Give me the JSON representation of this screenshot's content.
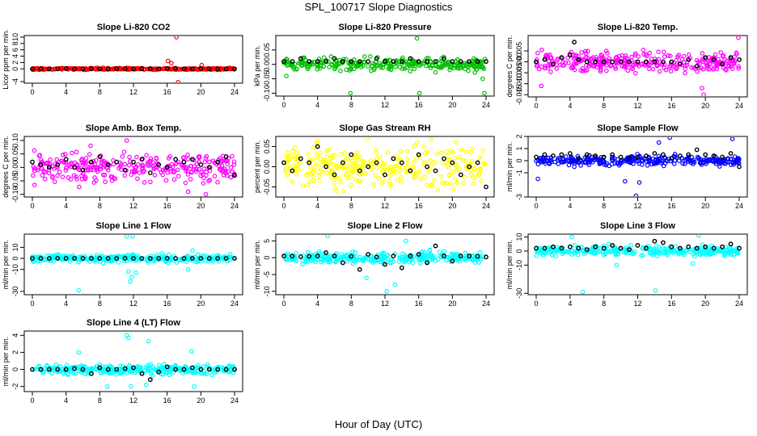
{
  "figure": {
    "title": "SPL_100717  Slope Diagnostics",
    "xlabel": "Hour of Day (UTC)"
  },
  "chart_data": [
    {
      "type": "scatter",
      "title": "Slope Li-820 CO2",
      "ylabel": "Licor ppm per min.",
      "xlim": [
        0,
        24
      ],
      "ylim": [
        -4.5,
        10.5
      ],
      "xticks": [
        0,
        4,
        8,
        12,
        16,
        20,
        24
      ],
      "yticks": [
        -4,
        0,
        2,
        4,
        6,
        8,
        10
      ],
      "ytick_labels": [
        "-4",
        "0",
        "2",
        "4",
        "6",
        "8",
        "10"
      ],
      "color": "#ff0000",
      "spread": 0.25,
      "outliers": [
        {
          "x": 17.1,
          "y": 10
        },
        {
          "x": 17.3,
          "y": -4.2
        },
        {
          "x": 16.1,
          "y": 2.5
        },
        {
          "x": 16.5,
          "y": 1.8
        },
        {
          "x": 20.1,
          "y": 1.2
        }
      ],
      "black_points": {
        "x": [
          0,
          1,
          2,
          3,
          4,
          5,
          6,
          7,
          8,
          9,
          10,
          11,
          12,
          13,
          14,
          15,
          16,
          17,
          18,
          19,
          20,
          21,
          22,
          23,
          24
        ],
        "y": [
          0,
          0,
          0,
          0,
          0.1,
          0,
          0,
          0,
          0,
          0,
          0.1,
          0,
          0,
          0,
          0,
          0,
          0.1,
          0.2,
          0,
          0,
          0.1,
          0,
          0,
          0,
          0
        ]
      }
    },
    {
      "type": "scatter",
      "title": "Slope Li-820 Pressure",
      "ylabel": "kPa per min.",
      "xlim": [
        0,
        24
      ],
      "ylim": [
        -0.11,
        0.1
      ],
      "xticks": [
        0,
        4,
        8,
        12,
        16,
        20,
        24
      ],
      "yticks": [
        -0.1,
        -0.05,
        0,
        0.05
      ],
      "ytick_labels": [
        "-0.10",
        "-0.05",
        "0.00",
        "0.05"
      ],
      "color": "#00c000",
      "spread": 0.02,
      "outliers": [
        {
          "x": 7.9,
          "y": -0.1
        },
        {
          "x": 15.8,
          "y": 0.09
        },
        {
          "x": 16.1,
          "y": -0.1
        },
        {
          "x": 23.8,
          "y": -0.1
        },
        {
          "x": 0.3,
          "y": -0.04
        },
        {
          "x": 23.6,
          "y": -0.05
        }
      ],
      "black_points": {
        "x": [
          0,
          1,
          2,
          3,
          4,
          5,
          6,
          7,
          8,
          9,
          10,
          11,
          12,
          13,
          14,
          15,
          16,
          17,
          18,
          19,
          20,
          21,
          22,
          23,
          24
        ],
        "y": [
          0.01,
          0.01,
          0.02,
          0.01,
          0.01,
          0.01,
          0.02,
          0.01,
          0.01,
          0.01,
          0.01,
          0.02,
          0.01,
          0.01,
          0.01,
          0.02,
          0.01,
          0.01,
          0.01,
          0.02,
          0.01,
          0.01,
          0.01,
          0.01,
          0.01
        ]
      }
    },
    {
      "type": "scatter",
      "title": "Slope Li-820 Temp.",
      "ylabel": "degrees C per min.",
      "xlim": [
        0,
        24
      ],
      "ylim": [
        -0.016,
        0.012
      ],
      "xticks": [
        0,
        4,
        8,
        12,
        16,
        20,
        24
      ],
      "yticks": [
        -0.015,
        -0.01,
        -0.005,
        0,
        0.005
      ],
      "ytick_labels": [
        "-0.015",
        "-0.010",
        "-0.005",
        "0.000",
        "0.005"
      ],
      "color": "#ff00ff",
      "spread": 0.004,
      "outliers": [
        {
          "x": 23.9,
          "y": 0.011
        },
        {
          "x": 19.8,
          "y": -0.015
        },
        {
          "x": 19.6,
          "y": -0.012
        },
        {
          "x": 0.6,
          "y": -0.011
        }
      ],
      "black_points": {
        "x": [
          0,
          1,
          2,
          3,
          4,
          4.5,
          5,
          6,
          7,
          8,
          9,
          10,
          11,
          12,
          13,
          14,
          15,
          16,
          17,
          18,
          19,
          20,
          21,
          22,
          23,
          24
        ],
        "y": [
          0,
          0.001,
          -0.001,
          0.002,
          0.003,
          0.009,
          0.001,
          0,
          0,
          0,
          0,
          0,
          0,
          0,
          0,
          0,
          0,
          0,
          -0.001,
          0.001,
          -0.002,
          0.002,
          0.001,
          -0.001,
          0.002,
          0.001
        ]
      }
    },
    {
      "type": "scatter",
      "title": "Slope Amb. Box Temp.",
      "ylabel": "degrees C per min.",
      "xlim": [
        0,
        24
      ],
      "ylim": [
        -0.11,
        0.115
      ],
      "xticks": [
        0,
        4,
        8,
        12,
        16,
        20,
        24
      ],
      "yticks": [
        -0.1,
        -0.05,
        0,
        0.05,
        0.1
      ],
      "ytick_labels": [
        "-0.10",
        "-0.05",
        "0.00",
        "0.05",
        "0.10"
      ],
      "color": "#ff00ff",
      "spread": 0.05,
      "outliers": [
        {
          "x": 11.2,
          "y": 0.1
        },
        {
          "x": 20.6,
          "y": -0.1
        },
        {
          "x": 18.5,
          "y": -0.09
        }
      ],
      "black_points": {
        "x": [
          0,
          1,
          2,
          3,
          4,
          5,
          6,
          7,
          8,
          9,
          10,
          11,
          12,
          13,
          14,
          15,
          16,
          17,
          18,
          19,
          20,
          21,
          22,
          23,
          24
        ],
        "y": [
          0.02,
          0.01,
          0,
          0.01,
          0.03,
          0,
          -0.01,
          0.02,
          0.04,
          0.01,
          0.02,
          -0.01,
          0.02,
          0.03,
          -0.02,
          0.01,
          0,
          0.03,
          0.02,
          0.03,
          0.01,
          0,
          0.02,
          0.04,
          -0.03
        ]
      }
    },
    {
      "type": "scatter",
      "title": "Slope Gas Stream RH",
      "ylabel": "percent per min.",
      "xlim": [
        0,
        24
      ],
      "ylim": [
        -0.075,
        0.075
      ],
      "xticks": [
        0,
        4,
        8,
        12,
        16,
        20,
        24
      ],
      "yticks": [
        -0.05,
        0,
        0.05
      ],
      "ytick_labels": [
        "-0.05",
        "0.00",
        "0.05"
      ],
      "color": "#ffff00",
      "spread": 0.045,
      "outliers": [
        {
          "x": 9.9,
          "y": 0.07
        },
        {
          "x": 3.9,
          "y": 0.06
        }
      ],
      "black_points": {
        "x": [
          0,
          1,
          2,
          3,
          4,
          5,
          6,
          7,
          8,
          9,
          10,
          11,
          12,
          13,
          14,
          15,
          16,
          17,
          18,
          19,
          20,
          21,
          22,
          23,
          24
        ],
        "y": [
          0.01,
          -0.01,
          0.02,
          0.01,
          0.05,
          0,
          -0.02,
          0.01,
          0.03,
          -0.01,
          0,
          0.01,
          -0.02,
          0.02,
          0.01,
          -0.01,
          0.03,
          0,
          -0.01,
          0.02,
          0.01,
          -0.02,
          0,
          0.01,
          -0.05
        ]
      }
    },
    {
      "type": "scatter",
      "title": "Slope Sample Flow",
      "ylabel": "ml/min per min.",
      "xlim": [
        0,
        24
      ],
      "ylim": [
        -3,
        2
      ],
      "xticks": [
        0,
        4,
        8,
        12,
        16,
        20,
        24
      ],
      "yticks": [
        -3,
        -1,
        0,
        1,
        2
      ],
      "ytick_labels": [
        "-3",
        "-1",
        "0",
        "1",
        "2"
      ],
      "color": "#0000ff",
      "spread": 0.35,
      "outliers": [
        {
          "x": 11.8,
          "y": -2.9
        },
        {
          "x": 14.5,
          "y": 1.5
        },
        {
          "x": 15.8,
          "y": 1.9
        },
        {
          "x": 23.2,
          "y": 1.8
        },
        {
          "x": 0.2,
          "y": -1.5
        },
        {
          "x": 12.2,
          "y": -1.8
        },
        {
          "x": 10.5,
          "y": -1.7
        }
      ],
      "black_points": {
        "x": [
          0,
          1,
          2,
          3,
          4,
          5,
          6,
          7,
          8,
          9,
          10,
          11,
          12,
          13,
          14,
          15,
          16,
          17,
          18,
          19,
          20,
          21,
          22,
          23,
          24
        ],
        "y": [
          0.3,
          0.5,
          0.4,
          0.5,
          0.6,
          0.2,
          0.5,
          0.4,
          0.3,
          0.5,
          0.3,
          0.2,
          0.3,
          0.4,
          0.6,
          0.5,
          0.2,
          0.4,
          0.5,
          0.9,
          0.5,
          0.4,
          0.3,
          0.6,
          -0.5
        ]
      }
    },
    {
      "type": "scatter",
      "title": "Slope Line 1 Flow",
      "ylabel": "ml/min per min.",
      "xlim": [
        0,
        24
      ],
      "ylim": [
        -33,
        22
      ],
      "xticks": [
        0,
        4,
        8,
        12,
        16,
        20,
        24
      ],
      "yticks": [
        -30,
        -10,
        0,
        10
      ],
      "ytick_labels": [
        "-30",
        "-10",
        "0",
        "10"
      ],
      "color": "#00ffff",
      "spread": 3,
      "outliers": [
        {
          "x": 5.5,
          "y": -29
        },
        {
          "x": 11.2,
          "y": 20
        },
        {
          "x": 11.9,
          "y": 20
        },
        {
          "x": 11.6,
          "y": -21
        },
        {
          "x": 11.8,
          "y": -17
        },
        {
          "x": 12.3,
          "y": -13
        },
        {
          "x": 11.4,
          "y": -12
        },
        {
          "x": 18.5,
          "y": -10
        },
        {
          "x": 19.0,
          "y": 7
        }
      ],
      "black_points": {
        "x": [
          0,
          1,
          2,
          3,
          4,
          5,
          6,
          7,
          8,
          9,
          10,
          11,
          12,
          13,
          14,
          15,
          16,
          17,
          18,
          19,
          20,
          21,
          22,
          23,
          24
        ],
        "y": [
          0,
          0,
          0,
          0,
          0,
          0,
          0,
          0,
          0,
          0,
          0,
          0,
          0,
          0,
          0,
          0,
          0,
          0,
          0,
          0,
          0,
          0,
          0,
          0,
          0
        ]
      }
    },
    {
      "type": "scatter",
      "title": "Slope Line 2 Flow",
      "ylabel": "ml/min per min.",
      "xlim": [
        0,
        24
      ],
      "ylim": [
        -11,
        7
      ],
      "xticks": [
        0,
        4,
        8,
        12,
        16,
        20,
        24
      ],
      "yticks": [
        -10,
        -5,
        0,
        5
      ],
      "ytick_labels": [
        "-10",
        "-5",
        "0",
        "5"
      ],
      "color": "#00ffff",
      "spread": 1.5,
      "outliers": [
        {
          "x": 5.2,
          "y": 6.5
        },
        {
          "x": 12.2,
          "y": -10
        },
        {
          "x": 13.2,
          "y": -8
        },
        {
          "x": 9.8,
          "y": -6
        },
        {
          "x": 14.5,
          "y": 5
        }
      ],
      "black_points": {
        "x": [
          0,
          1,
          2,
          3,
          4,
          5,
          6,
          7,
          8,
          9,
          10,
          11,
          12,
          13,
          14,
          15,
          16,
          17,
          18,
          19,
          20,
          21,
          22,
          23,
          24
        ],
        "y": [
          0.5,
          0.5,
          0.3,
          0.4,
          0.5,
          1.5,
          0.5,
          -1.5,
          0.4,
          -3.5,
          1,
          0.2,
          -2,
          0.5,
          -3,
          0.5,
          1,
          -1.5,
          3.5,
          0.5,
          -1,
          0.5,
          0.5,
          0.4,
          0.2
        ]
      }
    },
    {
      "type": "scatter",
      "title": "Slope Line 3 Flow",
      "ylabel": "ml/min per min.",
      "xlim": [
        0,
        24
      ],
      "ylim": [
        -31,
        12
      ],
      "xticks": [
        0,
        4,
        8,
        12,
        16,
        20,
        24
      ],
      "yticks": [
        -30,
        -10,
        0,
        10
      ],
      "ytick_labels": [
        "-30",
        "-10",
        "0",
        "10"
      ],
      "color": "#00ffff",
      "spread": 3,
      "outliers": [
        {
          "x": 4.2,
          "y": 10
        },
        {
          "x": 5.5,
          "y": -29
        },
        {
          "x": 14.1,
          "y": -28
        },
        {
          "x": 19.2,
          "y": 11
        },
        {
          "x": 18.5,
          "y": -9
        },
        {
          "x": 9.5,
          "y": -10
        }
      ],
      "black_points": {
        "x": [
          0,
          1,
          2,
          3,
          4,
          5,
          6,
          7,
          8,
          9,
          10,
          11,
          12,
          13,
          14,
          15,
          16,
          17,
          18,
          19,
          20,
          21,
          22,
          23,
          24
        ],
        "y": [
          2,
          2,
          3,
          2,
          3,
          2,
          1,
          3,
          2,
          4,
          2,
          1,
          4,
          2,
          7,
          6,
          3,
          2,
          3,
          2,
          3,
          2,
          3,
          5,
          2
        ]
      }
    },
    {
      "type": "scatter",
      "title": "Slope Line 4 (LT) Flow",
      "ylabel": "ml/min per min.",
      "xlim": [
        0,
        24
      ],
      "ylim": [
        -2.6,
        4.5
      ],
      "xticks": [
        0,
        4,
        8,
        12,
        16,
        20,
        24
      ],
      "yticks": [
        -2,
        0,
        2,
        4
      ],
      "ytick_labels": [
        "-2",
        "0",
        "2",
        "4"
      ],
      "color": "#00ffff",
      "spread": 0.5,
      "outliers": [
        {
          "x": 11.2,
          "y": 4
        },
        {
          "x": 11.4,
          "y": 3.7
        },
        {
          "x": 13.8,
          "y": 3.3
        },
        {
          "x": 5.5,
          "y": 2
        },
        {
          "x": 18.9,
          "y": 2.1
        },
        {
          "x": 11.7,
          "y": -2
        },
        {
          "x": 8.9,
          "y": -2
        },
        {
          "x": 13.5,
          "y": -1.8
        },
        {
          "x": 19.2,
          "y": -2
        }
      ],
      "black_points": {
        "x": [
          0,
          1,
          2,
          3,
          4,
          5,
          6,
          7,
          8,
          9,
          10,
          11,
          12,
          13,
          14,
          15,
          16,
          17,
          18,
          19,
          20,
          21,
          22,
          23,
          24
        ],
        "y": [
          0,
          0,
          0,
          0,
          0,
          0.1,
          0,
          -0.5,
          0.2,
          0,
          0,
          0.1,
          0.2,
          -0.5,
          -1.2,
          -0.3,
          0.3,
          0,
          0,
          0.2,
          0,
          0,
          0,
          0,
          0
        ]
      }
    }
  ]
}
